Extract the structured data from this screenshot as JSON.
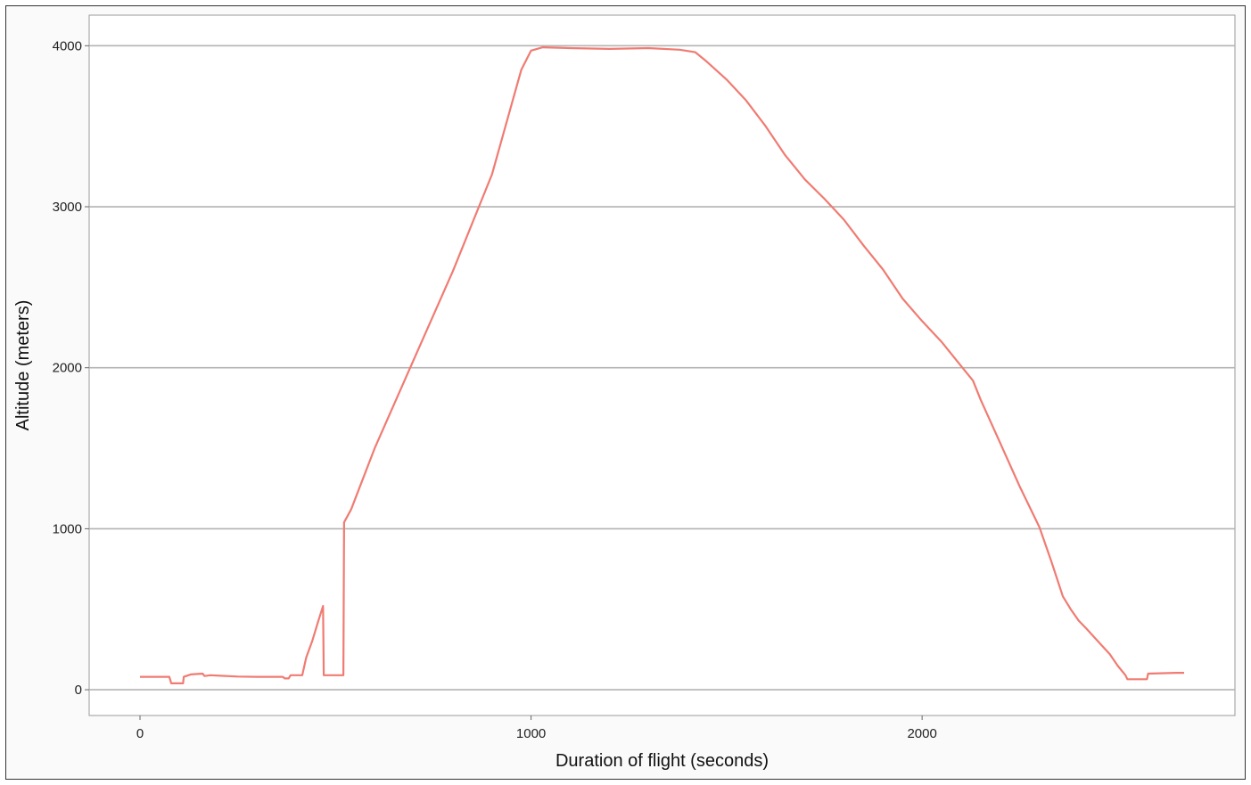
{
  "chart_data": {
    "type": "line",
    "title": "",
    "xlabel": "Duration of flight (seconds)",
    "ylabel": "Altitude (meters)",
    "xlim": [
      -130,
      2800
    ],
    "ylim": [
      -160,
      4190
    ],
    "xticks": [
      0,
      1000,
      2000
    ],
    "yticks": [
      0,
      1000,
      2000,
      3000,
      4000
    ],
    "grid": "horizontal",
    "line_color": "#f07b72",
    "grid_color": "#b3b3b3",
    "series": [
      {
        "points": [
          [
            0,
            80
          ],
          [
            75,
            80
          ],
          [
            80,
            40
          ],
          [
            110,
            40
          ],
          [
            112,
            80
          ],
          [
            130,
            95
          ],
          [
            160,
            100
          ],
          [
            165,
            85
          ],
          [
            180,
            90
          ],
          [
            250,
            82
          ],
          [
            300,
            80
          ],
          [
            365,
            80
          ],
          [
            370,
            70
          ],
          [
            380,
            70
          ],
          [
            385,
            90
          ],
          [
            415,
            90
          ],
          [
            425,
            200
          ],
          [
            440,
            300
          ],
          [
            455,
            420
          ],
          [
            468,
            520
          ],
          [
            470,
            90
          ],
          [
            520,
            90
          ],
          [
            522,
            1040
          ],
          [
            540,
            1120
          ],
          [
            600,
            1500
          ],
          [
            700,
            2050
          ],
          [
            800,
            2600
          ],
          [
            900,
            3200
          ],
          [
            975,
            3850
          ],
          [
            1000,
            3970
          ],
          [
            1030,
            3990
          ],
          [
            1100,
            3985
          ],
          [
            1200,
            3980
          ],
          [
            1300,
            3985
          ],
          [
            1380,
            3975
          ],
          [
            1420,
            3960
          ],
          [
            1450,
            3900
          ],
          [
            1500,
            3790
          ],
          [
            1550,
            3660
          ],
          [
            1600,
            3500
          ],
          [
            1650,
            3320
          ],
          [
            1700,
            3170
          ],
          [
            1750,
            3050
          ],
          [
            1800,
            2920
          ],
          [
            1850,
            2760
          ],
          [
            1900,
            2610
          ],
          [
            1950,
            2430
          ],
          [
            2000,
            2290
          ],
          [
            2050,
            2160
          ],
          [
            2100,
            2010
          ],
          [
            2130,
            1920
          ],
          [
            2150,
            1800
          ],
          [
            2200,
            1530
          ],
          [
            2250,
            1260
          ],
          [
            2300,
            1010
          ],
          [
            2330,
            800
          ],
          [
            2360,
            580
          ],
          [
            2380,
            500
          ],
          [
            2400,
            430
          ],
          [
            2420,
            380
          ],
          [
            2450,
            300
          ],
          [
            2480,
            220
          ],
          [
            2500,
            150
          ],
          [
            2520,
            90
          ],
          [
            2525,
            65
          ],
          [
            2575,
            65
          ],
          [
            2578,
            100
          ],
          [
            2650,
            105
          ],
          [
            2670,
            105
          ]
        ]
      }
    ]
  }
}
